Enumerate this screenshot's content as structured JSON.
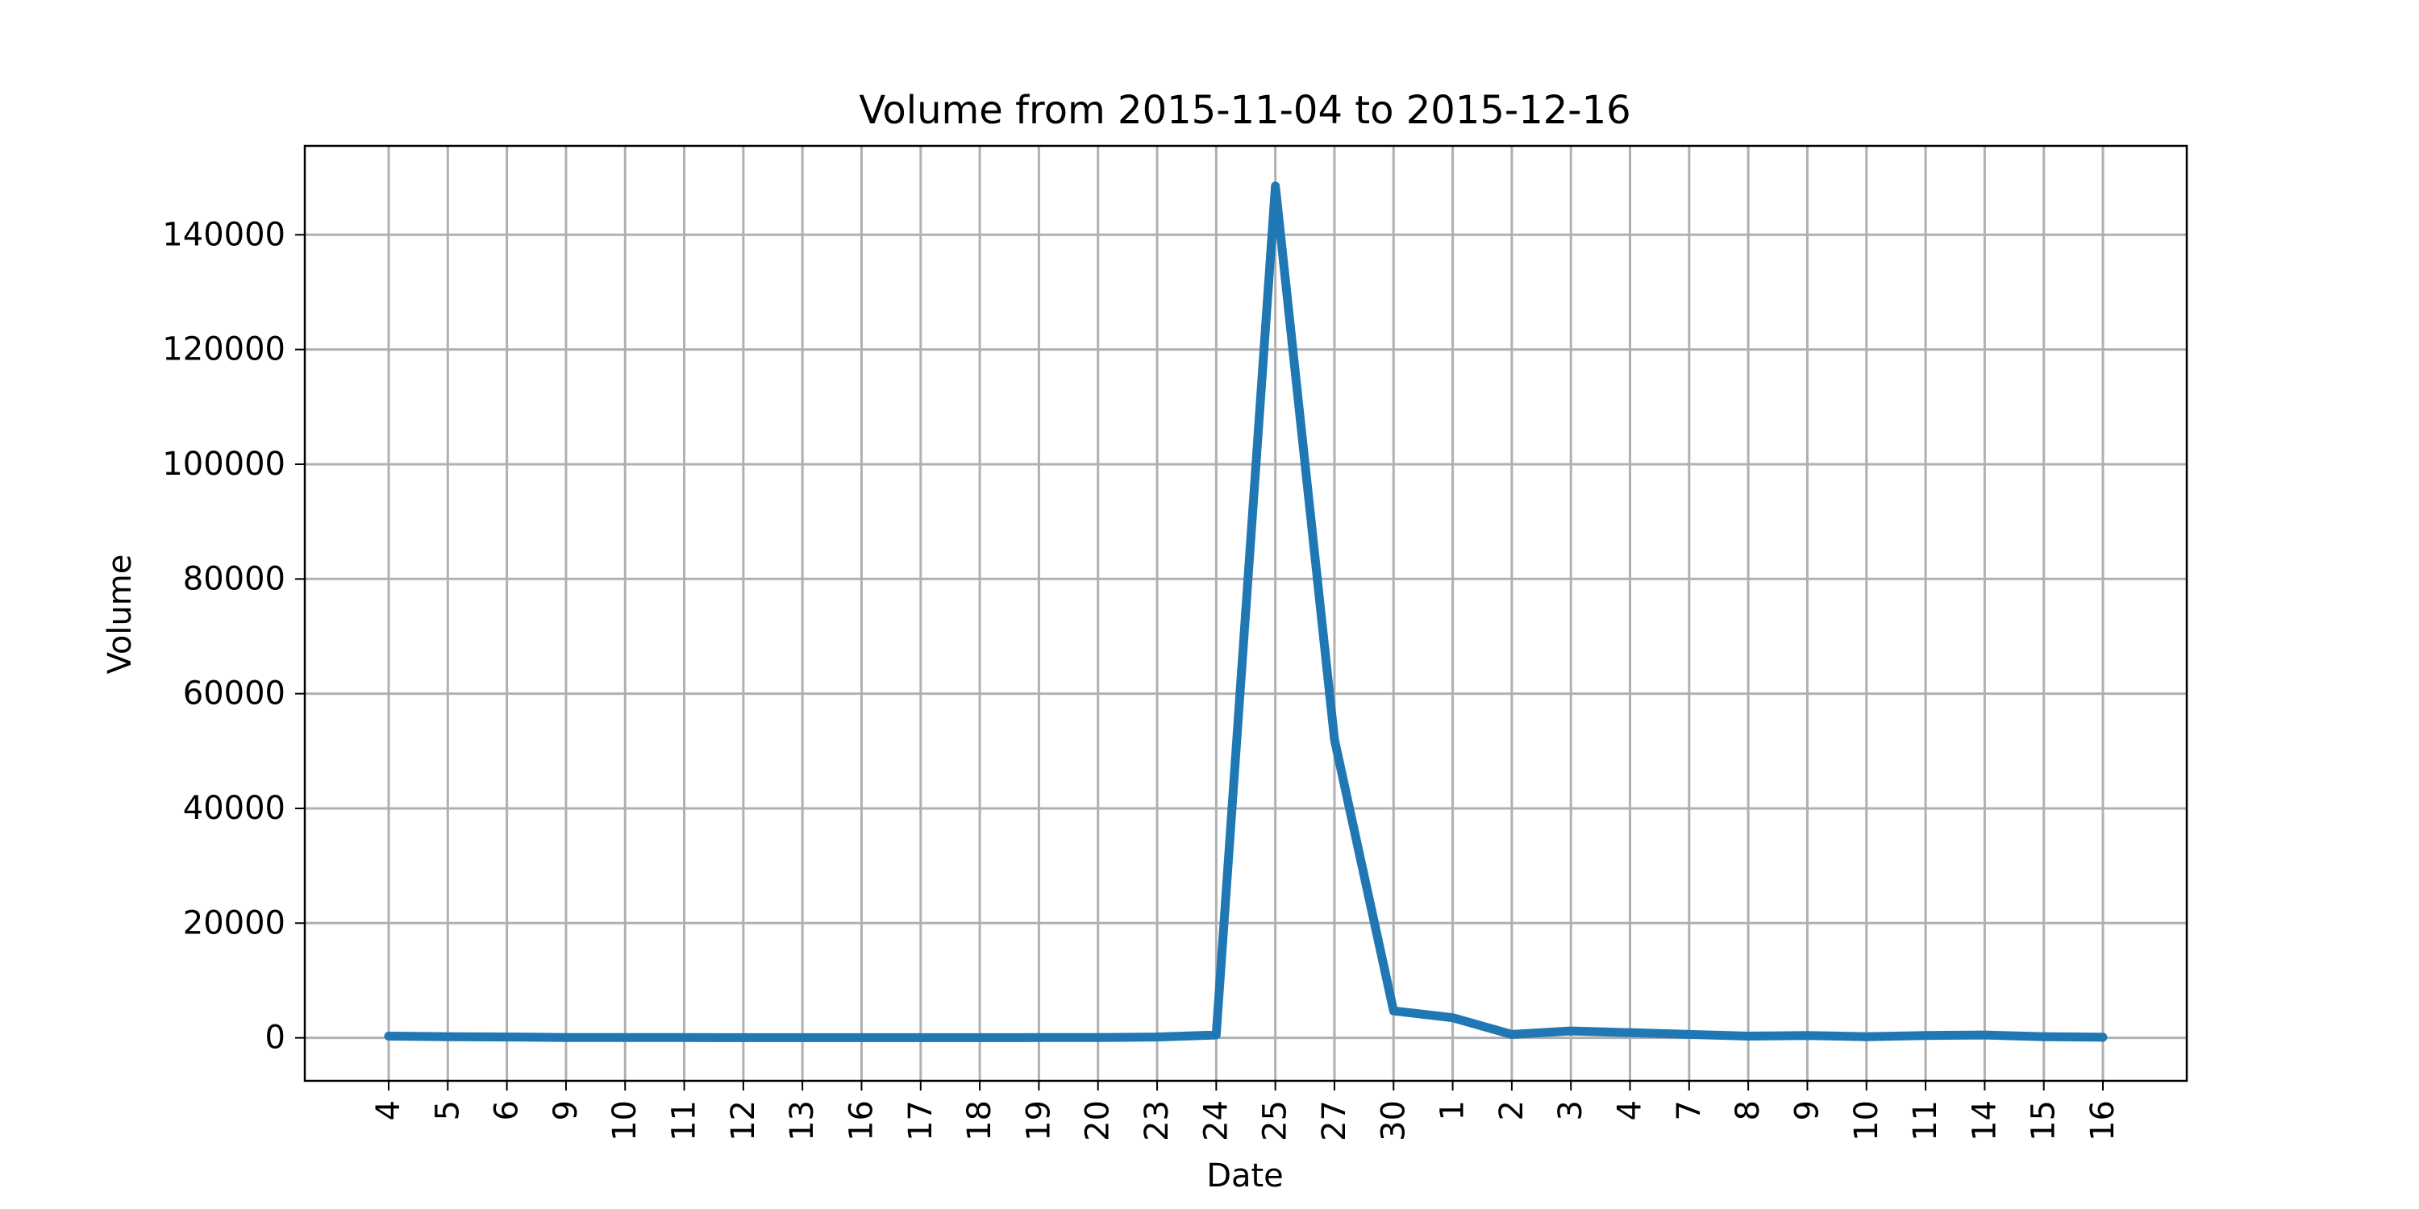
{
  "chart_data": {
    "type": "line",
    "title": "Volume from 2015-11-04 to 2015-12-16",
    "xlabel": "Date",
    "ylabel": "Volume",
    "x": [
      "2015-11-04",
      "2015-11-05",
      "2015-11-06",
      "2015-11-09",
      "2015-11-10",
      "2015-11-11",
      "2015-11-12",
      "2015-11-13",
      "2015-11-16",
      "2015-11-17",
      "2015-11-18",
      "2015-11-19",
      "2015-11-20",
      "2015-11-23",
      "2015-11-24",
      "2015-11-25",
      "2015-11-27",
      "2015-11-30",
      "2015-12-01",
      "2015-12-02",
      "2015-12-03",
      "2015-12-04",
      "2015-12-07",
      "2015-12-08",
      "2015-12-09",
      "2015-12-10",
      "2015-12-11",
      "2015-12-14",
      "2015-12-15",
      "2015-12-16"
    ],
    "x_tick_labels": [
      "4",
      "5",
      "6",
      "9",
      "10",
      "11",
      "12",
      "13",
      "16",
      "17",
      "18",
      "19",
      "20",
      "23",
      "24",
      "25",
      "27",
      "30",
      "1",
      "2",
      "3",
      "4",
      "7",
      "8",
      "9",
      "10",
      "11",
      "14",
      "15",
      "16"
    ],
    "series": [
      {
        "values": [
          300,
          200,
          150,
          50,
          50,
          50,
          30,
          30,
          30,
          30,
          30,
          50,
          50,
          150,
          500,
          148500,
          52000,
          4700,
          3500,
          600,
          1200,
          900,
          600,
          300,
          400,
          200,
          400,
          500,
          200,
          100
        ],
        "color": "#1f77b4"
      }
    ],
    "ylim": [
      -7500,
      155500
    ],
    "y_ticks": [
      0,
      20000,
      40000,
      60000,
      80000,
      100000,
      120000,
      140000
    ],
    "y_tick_labels": [
      "0",
      "20000",
      "40000",
      "60000",
      "80000",
      "100000",
      "120000",
      "140000"
    ],
    "grid": true,
    "legend": "none"
  }
}
